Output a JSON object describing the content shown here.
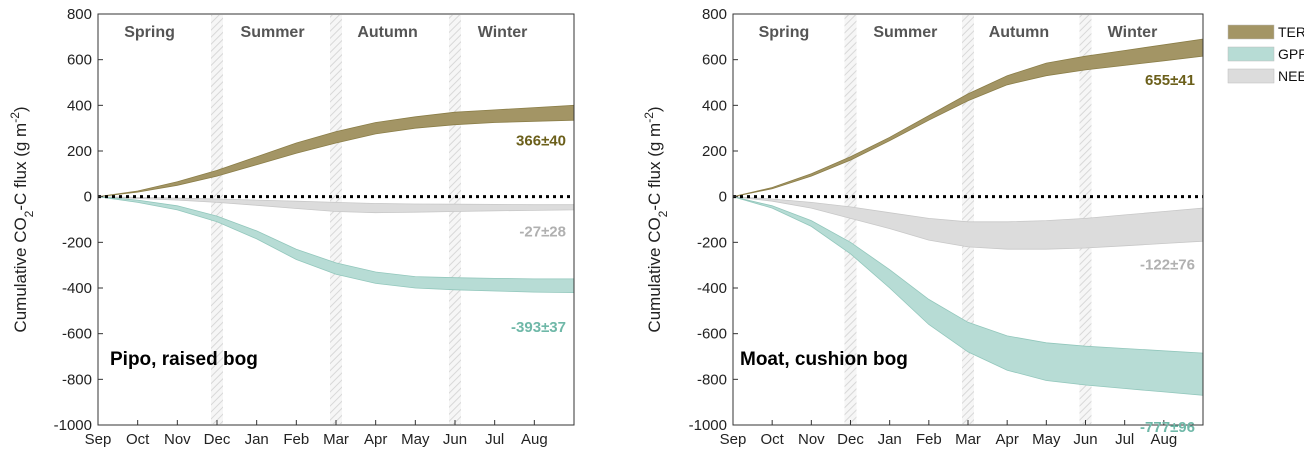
{
  "chart_data": [
    {
      "type": "area",
      "title": "Pipo, raised bog",
      "ylabel": "Cumulative CO₂-C flux (g m⁻²)",
      "ylabel_parts": {
        "a": "Cumulative CO",
        "b": "2",
        "c": "-C flux (g m",
        "d": "-2",
        "e": ")"
      },
      "ylim": [
        -1000,
        800
      ],
      "yticks": [
        "800",
        "600",
        "400",
        "200",
        "0",
        "-200",
        "-400",
        "-600",
        "-800",
        "-1000"
      ],
      "xticks": [
        "Sep",
        "Oct",
        "Nov",
        "Dec",
        "Jan",
        "Feb",
        "Mar",
        "Apr",
        "May",
        "Jun",
        "Jul",
        "Aug"
      ],
      "seasons": [
        "Spring",
        "Summer",
        "Autumn",
        "Winter"
      ],
      "x": [
        0,
        1,
        2,
        3,
        4,
        5,
        6,
        7,
        8,
        9,
        10,
        11,
        12
      ],
      "series": [
        {
          "name": "TER",
          "upper": [
            0,
            25,
            65,
            115,
            175,
            235,
            285,
            325,
            350,
            370,
            380,
            390,
            400
          ],
          "lower": [
            0,
            20,
            50,
            90,
            140,
            190,
            235,
            275,
            300,
            315,
            325,
            330,
            335
          ]
        },
        {
          "name": "NEE",
          "upper": [
            0,
            -3,
            -6,
            -10,
            -15,
            -20,
            -25,
            -30,
            -32,
            -33,
            -34,
            -35,
            -35
          ],
          "lower": [
            0,
            -8,
            -15,
            -25,
            -38,
            -52,
            -65,
            -70,
            -68,
            -65,
            -62,
            -60,
            -58
          ]
        },
        {
          "name": "GPP",
          "upper": [
            0,
            -15,
            -40,
            -85,
            -150,
            -230,
            -290,
            -330,
            -350,
            -355,
            -358,
            -360,
            -360
          ],
          "lower": [
            0,
            -25,
            -58,
            -110,
            -185,
            -275,
            -340,
            -380,
            -400,
            -408,
            -413,
            -418,
            -420
          ]
        }
      ],
      "annotations": [
        {
          "series": "TER",
          "text": "366±40",
          "color": "#6b5f1a"
        },
        {
          "series": "NEE",
          "text": "-27±28",
          "color": "#b0b0b0"
        },
        {
          "series": "GPP",
          "text": "-393±37",
          "color": "#6fb8a8"
        }
      ]
    },
    {
      "type": "area",
      "title": "Moat, cushion bog",
      "ylabel": "Cumulative CO₂-C flux (g m⁻²)",
      "ylabel_parts": {
        "a": "Cumulative CO",
        "b": "2",
        "c": "-C flux (g m",
        "d": "-2",
        "e": ")"
      },
      "ylim": [
        -1000,
        800
      ],
      "yticks": [
        "800",
        "600",
        "400",
        "200",
        "0",
        "-200",
        "-400",
        "-600",
        "-800",
        "-1000"
      ],
      "xticks": [
        "Sep",
        "Oct",
        "Nov",
        "Dec",
        "Jan",
        "Feb",
        "Mar",
        "Apr",
        "May",
        "Jun",
        "Jul",
        "Aug"
      ],
      "seasons": [
        "Spring",
        "Summer",
        "Autumn",
        "Winter"
      ],
      "x": [
        0,
        1,
        2,
        3,
        4,
        5,
        6,
        7,
        8,
        9,
        10,
        11,
        12
      ],
      "series": [
        {
          "name": "TER",
          "upper": [
            0,
            40,
            100,
            175,
            260,
            355,
            450,
            530,
            585,
            615,
            640,
            665,
            690
          ],
          "lower": [
            0,
            35,
            90,
            160,
            245,
            335,
            420,
            490,
            530,
            555,
            575,
            595,
            615
          ]
        },
        {
          "name": "NEE",
          "upper": [
            0,
            -10,
            -25,
            -45,
            -70,
            -95,
            -110,
            -110,
            -105,
            -95,
            -80,
            -65,
            -50
          ],
          "lower": [
            0,
            -20,
            -50,
            -95,
            -140,
            -190,
            -220,
            -230,
            -230,
            -225,
            -215,
            -205,
            -195
          ]
        },
        {
          "name": "GPP",
          "upper": [
            0,
            -40,
            -105,
            -200,
            -320,
            -450,
            -550,
            -610,
            -640,
            -655,
            -665,
            -675,
            -685
          ],
          "lower": [
            0,
            -50,
            -130,
            -250,
            -400,
            -560,
            -680,
            -760,
            -805,
            -825,
            -840,
            -855,
            -870
          ]
        }
      ],
      "annotations": [
        {
          "series": "TER",
          "text": "655±41",
          "color": "#6b5f1a"
        },
        {
          "series": "NEE",
          "text": "-122±76",
          "color": "#b0b0b0"
        },
        {
          "series": "GPP",
          "text": "-777±96",
          "color": "#6fb8a8"
        }
      ]
    }
  ],
  "legend": {
    "placement": "top-right",
    "items": [
      {
        "label": "TER",
        "color": "#a39565"
      },
      {
        "label": "GPP",
        "color": "#b7dcd5"
      },
      {
        "label": "NEE",
        "color": "#dcdcdc"
      }
    ]
  },
  "colors": {
    "TER": "#a39565",
    "GPP": "#b7dcd5",
    "NEE": "#dcdcdc",
    "TER_edge": "#8b7e48",
    "GPP_edge": "#92c7bc",
    "NEE_edge": "#c8c8c8"
  }
}
